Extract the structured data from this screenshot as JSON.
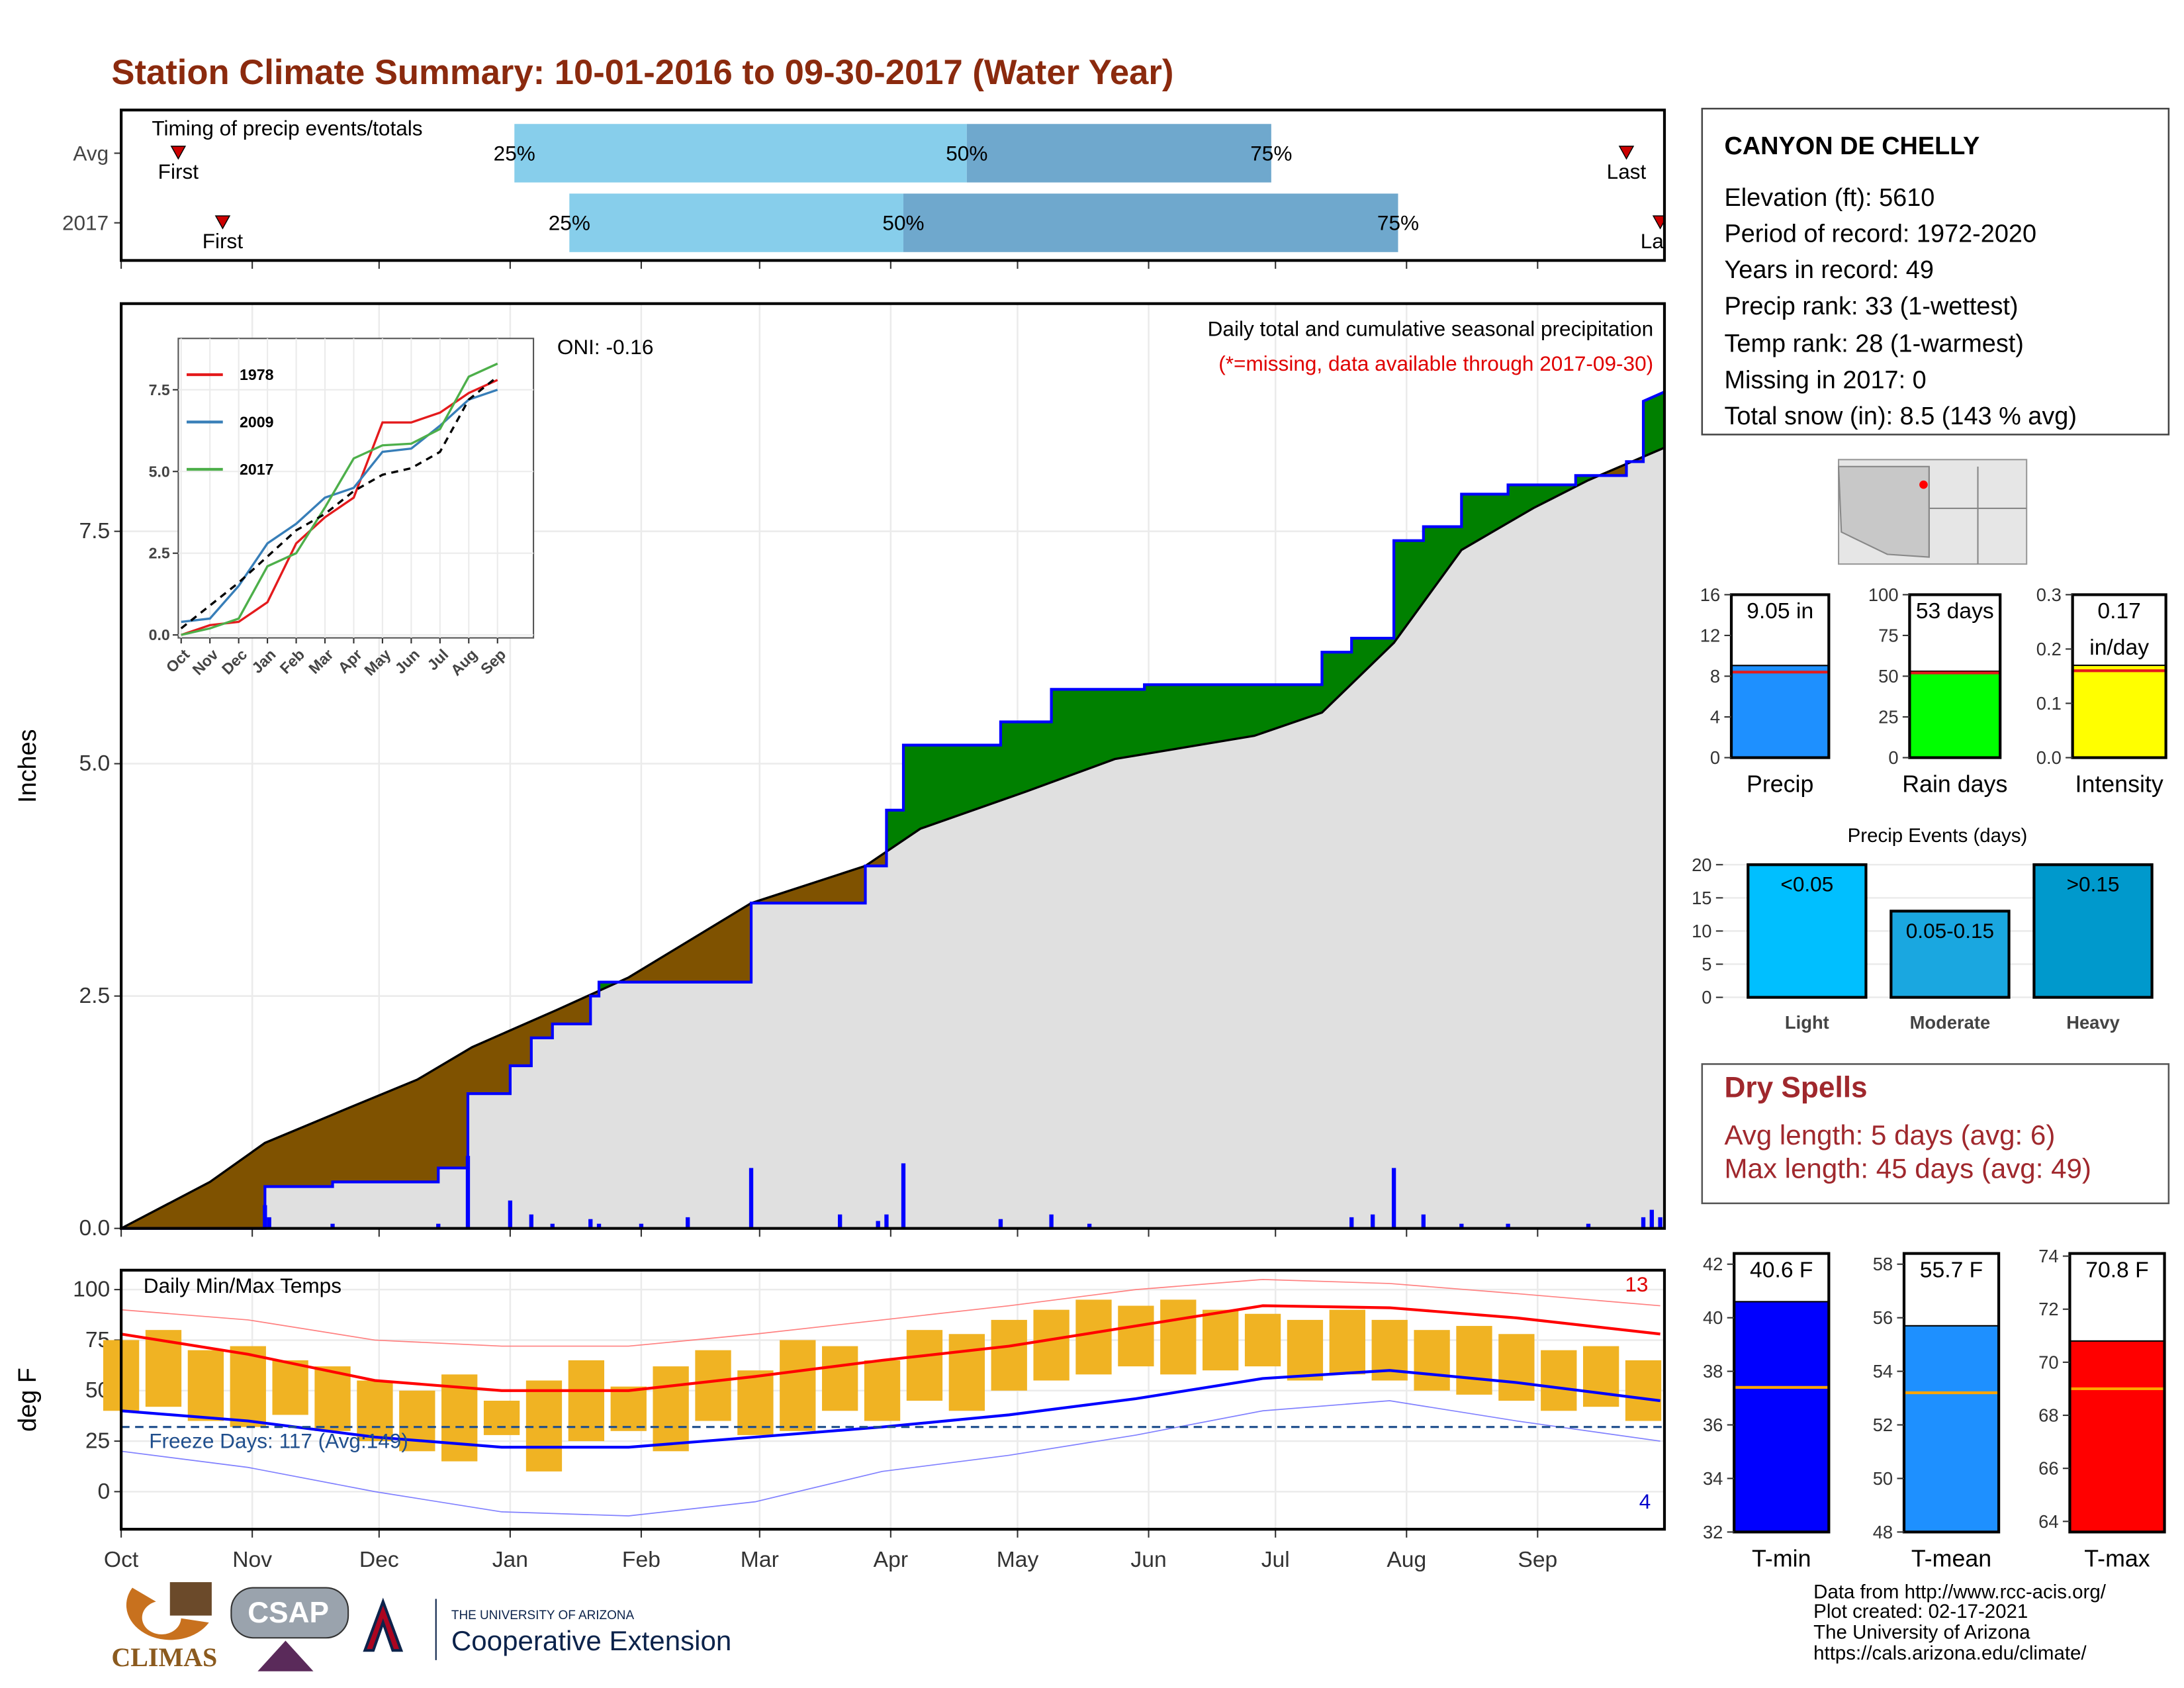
{
  "title": "Station Climate Summary: 10-01-2016 to 09-30-2017 (Water Year)",
  "station": {
    "name": "CANYON DE CHELLY",
    "lines": [
      "Elevation (ft): 5610",
      "Period of record: 1972-2020",
      "Years in record: 49",
      "Precip rank: 33 (1-wettest)",
      "Temp rank: 28 (1-warmest)",
      "Missing in 2017: 0",
      "Total snow (in): 8.5 (143 % avg)"
    ]
  },
  "dry_spells": {
    "title": "Dry Spells",
    "lines": [
      "Avg length: 5 days (avg: 6)",
      "Max length: 45 days (avg: 49)"
    ]
  },
  "footer": [
    "Data from http://www.rcc-acis.org/",
    "Plot created: 02-17-2021",
    "The University of Arizona",
    "https://cals.arizona.edu/climate/"
  ],
  "logos": {
    "climas": "CLIMAS",
    "csap": "CSAP",
    "university": "THE UNIVERSITY OF ARIZONA",
    "extension": "Cooperative Extension"
  },
  "chart_data": [
    {
      "type": "timing",
      "title": "Timing of precip events/totals",
      "categories": [
        "Avg",
        "2017"
      ],
      "markers": [
        "First",
        "25%",
        "50%",
        "75%",
        "Last"
      ],
      "rows": [
        [
          13.5,
          93,
          200,
          272,
          356
        ],
        [
          24,
          106,
          185,
          302,
          364
        ]
      ],
      "colors": [
        "#87ceeb",
        "#6fa8cd"
      ],
      "marker_color": "#cc0000",
      "xlim": [
        0,
        365
      ]
    },
    {
      "type": "precip_area",
      "title": "Daily total and cumulative seasonal precipitation",
      "subtitle": "(*=missing, data available through 2017-09-30)",
      "subtitle_color": "#e00000",
      "annotation": "ONI: -0.16",
      "y_label": "Inches",
      "xlim": [
        0,
        365
      ],
      "ylim": [
        0,
        9.95
      ],
      "yticks": [
        {
          "value": 0,
          "label": "0.0"
        },
        {
          "value": 2.5,
          "label": "2.5"
        },
        {
          "value": 5,
          "label": "5.0"
        },
        {
          "value": 7.5,
          "label": "7.5"
        }
      ],
      "above_color": "#008000",
      "below_color": "#7f5200",
      "base_color": "#e0e0e0",
      "series": [
        {
          "color": "#0000ff",
          "x": [
            0,
            34,
            34,
            50,
            50,
            75,
            75,
            82,
            82,
            92,
            92,
            97,
            97,
            102,
            102,
            111,
            111,
            113,
            113,
            149,
            149,
            176,
            176,
            181,
            181,
            185,
            185,
            208,
            208,
            220,
            220,
            242,
            242,
            284,
            284,
            291,
            291,
            301,
            301,
            308,
            308,
            317,
            317,
            328,
            328,
            344,
            344,
            356,
            356,
            360,
            360,
            365
          ],
          "values": [
            0,
            0,
            0.45,
            0.45,
            0.5,
            0.5,
            0.65,
            0.65,
            1.45,
            1.45,
            1.75,
            1.75,
            2.05,
            2.05,
            2.2,
            2.2,
            2.5,
            2.5,
            2.65,
            2.65,
            3.5,
            3.5,
            3.9,
            3.9,
            4.5,
            4.5,
            5.2,
            5.2,
            5.45,
            5.45,
            5.8,
            5.8,
            5.85,
            5.85,
            6.2,
            6.2,
            6.35,
            6.35,
            7.4,
            7.4,
            7.55,
            7.55,
            7.9,
            7.9,
            8.0,
            8.0,
            8.1,
            8.1,
            8.25,
            8.25,
            8.9,
            9.0
          ]
        },
        {
          "color": "#000000",
          "x": [
            0,
            21,
            34,
            54,
            70,
            83,
            103,
            120,
            149,
            176,
            189,
            214,
            235,
            268,
            284,
            301,
            317,
            334,
            347,
            365
          ],
          "values": [
            0,
            0.5,
            0.92,
            1.3,
            1.6,
            1.95,
            2.35,
            2.7,
            3.5,
            3.9,
            4.3,
            4.7,
            5.05,
            5.3,
            5.55,
            6.3,
            7.3,
            7.75,
            8.05,
            8.4
          ]
        },
        {
          "color": "#0000ff",
          "x": [
            34,
            35,
            50,
            75,
            82,
            92,
            97,
            102,
            111,
            113,
            123,
            134,
            149,
            170,
            179,
            181,
            185,
            208,
            220,
            229,
            291,
            296,
            301,
            308,
            317,
            328,
            347,
            360,
            362,
            364
          ],
          "values": [
            0.25,
            0.12,
            0.05,
            0.05,
            0.78,
            0.3,
            0.15,
            0.05,
            0.1,
            0.05,
            0.05,
            0.12,
            0.65,
            0.15,
            0.08,
            0.15,
            0.7,
            0.1,
            0.15,
            0.05,
            0.12,
            0.15,
            0.65,
            0.15,
            0.05,
            0.05,
            0.05,
            0.12,
            0.2,
            0.12
          ]
        }
      ]
    },
    {
      "type": "line",
      "categories": [
        "Oct",
        "Nov",
        "Dec",
        "Jan",
        "Feb",
        "Mar",
        "Apr",
        "May",
        "Jun",
        "Jul",
        "Aug",
        "Sep"
      ],
      "xlim": [
        -0.1,
        12.25
      ],
      "ylim": [
        -0.09,
        9.07
      ],
      "yticks": [
        {
          "value": 0,
          "label": "0.0"
        },
        {
          "value": 2.5,
          "label": "2.5"
        },
        {
          "value": 5,
          "label": "5.0"
        },
        {
          "value": 7.5,
          "label": "7.5"
        }
      ],
      "series": [
        {
          "name": "1978",
          "color": "#e41a1c",
          "values": [
            0,
            0.3,
            0.4,
            1.0,
            2.8,
            3.6,
            4.2,
            6.5,
            6.5,
            6.8,
            7.4,
            7.8
          ]
        },
        {
          "name": "2009",
          "color": "#377eb8",
          "values": [
            0.4,
            0.5,
            1.5,
            2.8,
            3.4,
            4.2,
            4.5,
            5.6,
            5.7,
            6.4,
            7.2,
            7.5
          ]
        },
        {
          "name": "2017",
          "color": "#4daf4a",
          "values": [
            0,
            0.2,
            0.5,
            2.1,
            2.5,
            3.9,
            5.4,
            5.8,
            5.85,
            6.3,
            7.9,
            8.3
          ]
        },
        {
          "color": "#000000",
          "dash": true,
          "values": [
            0.2,
            0.9,
            1.6,
            2.4,
            3.2,
            3.7,
            4.4,
            4.9,
            5.1,
            5.6,
            7.2,
            7.9
          ]
        }
      ]
    },
    {
      "type": "temperature",
      "title": "Daily Min/Max Temps",
      "y_label": "deg F",
      "annotation": "Freeze Days: 117 (Avg:149)",
      "high_count": 13,
      "low_count": 4,
      "freeze_line": 32,
      "freeze_color": "#1f4e8c",
      "xlim": [
        0,
        365
      ],
      "ylim": [
        -18.6,
        109.6
      ],
      "yticks": [
        0,
        25,
        50,
        75,
        100
      ],
      "xticks": [
        {
          "value": 0,
          "label": "Oct"
        },
        {
          "value": 31,
          "label": "Nov"
        },
        {
          "value": 61,
          "label": "Dec"
        },
        {
          "value": 92,
          "label": "Jan"
        },
        {
          "value": 123,
          "label": "Feb"
        },
        {
          "value": 151,
          "label": "Mar"
        },
        {
          "value": 182,
          "label": "Apr"
        },
        {
          "value": 212,
          "label": "May"
        },
        {
          "value": 243,
          "label": "Jun"
        },
        {
          "value": 273,
          "label": "Jul"
        },
        {
          "value": 304,
          "label": "Aug"
        },
        {
          "value": 335,
          "label": "Sep"
        }
      ],
      "observed": {
        "color": "#f0b323",
        "x": [
          0,
          10,
          20,
          30,
          40,
          50,
          60,
          70,
          80,
          90,
          100,
          110,
          120,
          130,
          140,
          150,
          160,
          170,
          180,
          190,
          200,
          210,
          220,
          230,
          240,
          250,
          260,
          270,
          280,
          290,
          300,
          310,
          320,
          330,
          340,
          350,
          360
        ],
        "max": [
          75,
          80,
          70,
          72,
          65,
          62,
          55,
          50,
          58,
          45,
          55,
          65,
          52,
          62,
          70,
          60,
          75,
          72,
          65,
          80,
          78,
          85,
          90,
          95,
          92,
          95,
          90,
          88,
          85,
          90,
          85,
          80,
          82,
          78,
          70,
          72,
          65
        ],
        "min": [
          40,
          42,
          35,
          32,
          38,
          30,
          25,
          20,
          15,
          28,
          10,
          25,
          30,
          20,
          35,
          28,
          30,
          40,
          35,
          45,
          40,
          50,
          55,
          58,
          62,
          58,
          60,
          62,
          55,
          58,
          55,
          50,
          48,
          45,
          40,
          42,
          35
        ]
      },
      "series": [
        {
          "color": "#ff8080",
          "thin": true,
          "x": [
            0,
            30,
            60,
            90,
            120,
            150,
            180,
            210,
            240,
            270,
            300,
            330,
            364
          ],
          "values": [
            90,
            85,
            75,
            72,
            72,
            78,
            85,
            92,
            100,
            105,
            103,
            98,
            92
          ]
        },
        {
          "color": "#8080ff",
          "thin": true,
          "x": [
            0,
            30,
            60,
            90,
            120,
            150,
            180,
            210,
            240,
            270,
            300,
            330,
            364
          ],
          "values": [
            20,
            12,
            0,
            -10,
            -12,
            -5,
            10,
            18,
            28,
            40,
            45,
            35,
            25
          ]
        },
        {
          "color": "#ff0000",
          "x": [
            0,
            30,
            60,
            90,
            120,
            150,
            180,
            210,
            240,
            270,
            300,
            330,
            364
          ],
          "values": [
            78,
            68,
            55,
            50,
            50,
            57,
            65,
            72,
            82,
            92,
            91,
            86,
            78
          ]
        },
        {
          "color": "#0000ff",
          "x": [
            0,
            30,
            60,
            90,
            120,
            150,
            180,
            210,
            240,
            270,
            300,
            330,
            364
          ],
          "values": [
            40,
            35,
            27,
            22,
            22,
            27,
            32,
            38,
            46,
            56,
            60,
            54,
            45
          ]
        }
      ]
    },
    {
      "type": "gauge",
      "category": "Precip",
      "value": 9.05,
      "value_label": "9.05 in",
      "average": 8.4,
      "color": "#1e90ff",
      "average_color": "#e41a1c",
      "ylim": [
        0,
        16
      ],
      "yticks": [
        0,
        4,
        8,
        12,
        16
      ]
    },
    {
      "type": "gauge",
      "category": "Rain days",
      "value": 53,
      "value_label": "53 days",
      "average": 52,
      "color": "#00ff00",
      "average_color": "#e41a1c",
      "ylim": [
        0,
        100
      ],
      "yticks": [
        0,
        25,
        50,
        75,
        100
      ]
    },
    {
      "type": "gauge",
      "category": "Intensity",
      "value": 0.17,
      "value_label": "0.17",
      "note": "in/day",
      "average": 0.16,
      "color": "#ffff00",
      "average_color": "#e41a1c",
      "ylim": [
        0,
        0.3
      ],
      "yticks": [
        {
          "value": 0,
          "label": "0.0"
        },
        {
          "value": 0.1,
          "label": "0.1"
        },
        {
          "value": 0.2,
          "label": "0.2"
        },
        {
          "value": 0.3,
          "label": "0.3"
        }
      ]
    },
    {
      "type": "bar",
      "title": "Precip Events (days)",
      "categories": [
        "Light",
        "Moderate",
        "Heavy"
      ],
      "values": [
        20,
        13,
        20
      ],
      "value_labels": [
        "<0.05",
        "0.05-0.15",
        ">0.15"
      ],
      "colors": [
        "#00bfff",
        "#1aa7e0",
        "#0099cc"
      ],
      "ylim": [
        -0.4,
        20.6
      ],
      "yticks": [
        0,
        5,
        10,
        15,
        20
      ]
    },
    {
      "type": "gauge",
      "category": "T-min",
      "value": 40.6,
      "value_label": "40.6 F",
      "average": 37.4,
      "color": "#0000ff",
      "average_color": "#ffa500",
      "ylim": [
        32,
        42.4
      ],
      "yticks": [
        32,
        34,
        36,
        38,
        40,
        42
      ]
    },
    {
      "type": "gauge",
      "category": "T-mean",
      "value": 55.7,
      "value_label": "55.7 F",
      "average": 53.2,
      "color": "#1e90ff",
      "average_color": "#ffa500",
      "ylim": [
        48,
        58.4
      ],
      "yticks": [
        48,
        50,
        52,
        54,
        56,
        58
      ]
    },
    {
      "type": "gauge",
      "category": "T-max",
      "value": 70.8,
      "value_label": "70.8 F",
      "average": 69.0,
      "color": "#ff0000",
      "average_color": "#ffa500",
      "ylim": [
        63.6,
        74.1
      ],
      "yticks": [
        64,
        66,
        68,
        70,
        72,
        74
      ]
    }
  ]
}
